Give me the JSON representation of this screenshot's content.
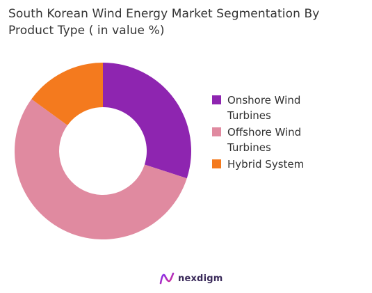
{
  "chart_data": {
    "type": "pie",
    "title": "South Korean Wind Energy Market Segmentation By Product Type ( in value %)",
    "donut": true,
    "legend_position": "right",
    "categories": [
      "Onshore Wind Turbines",
      "Offshore Wind Turbines",
      "Hybrid System"
    ],
    "values": [
      30,
      55,
      15
    ],
    "colors": [
      "#8e25b0",
      "#e08aa0",
      "#f47a1e"
    ]
  },
  "legend": {
    "items": [
      {
        "label": "Onshore Wind Turbines",
        "color": "#8e25b0"
      },
      {
        "label": "Offshore Wind Turbines",
        "color": "#e08aa0"
      },
      {
        "label": "Hybrid System",
        "color": "#f47a1e"
      }
    ]
  },
  "brand": {
    "name": "nexdigm",
    "icon": "nexdigm-logo-icon"
  }
}
